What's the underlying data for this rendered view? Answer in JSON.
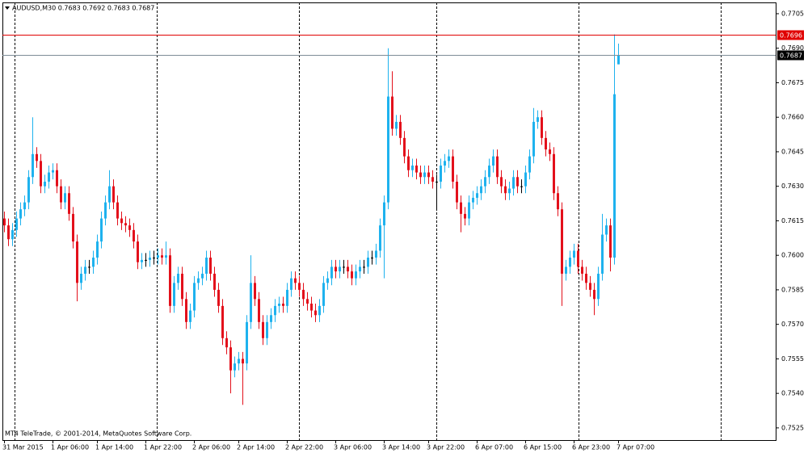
{
  "chart_data": {
    "type": "candlestick",
    "title": "AUDUSD,M30  0.7683 0.7692 0.7683 0.7687",
    "footer_text": "MT4 TeleTrade, © 2001-2014, MetaQuotes Software Corp.",
    "categories": [
      "31 Mar 2015",
      null,
      null,
      null,
      null,
      null,
      null,
      null,
      null,
      null,
      null,
      null,
      "1 Apr 06:00",
      null,
      null,
      null,
      null,
      null,
      null,
      null,
      null,
      null,
      null,
      "1 Apr 14:00",
      null,
      null,
      null,
      null,
      null,
      null,
      null,
      null,
      null,
      null,
      null,
      "1 Apr 22:00",
      null,
      null,
      null,
      null,
      null,
      null,
      null,
      null,
      null,
      null,
      null,
      "2 Apr 06:00",
      null,
      null,
      null,
      null,
      null,
      null,
      null,
      null,
      null,
      null,
      "2 Apr 14:00",
      null,
      null,
      null,
      null,
      null,
      null,
      null,
      null,
      null,
      null,
      null,
      "2 Apr 22:00",
      null,
      null,
      null,
      null,
      null,
      null,
      null,
      null,
      null,
      null,
      null,
      "3 Apr 06:00",
      null,
      null,
      null,
      null,
      null,
      null,
      null,
      null,
      null,
      null,
      null,
      "3 Apr 14:00",
      null,
      null,
      null,
      null,
      null,
      null,
      null,
      null,
      null,
      null,
      "3 Apr 22:00",
      null,
      null,
      null,
      null,
      null,
      null,
      null,
      null,
      null,
      null,
      null,
      "6 Apr 07:00",
      null,
      null,
      null,
      null,
      null,
      null,
      null,
      null,
      null,
      null,
      null,
      "6 Apr 15:00",
      null,
      null,
      null,
      null,
      null,
      null,
      null,
      null,
      null,
      null,
      null,
      "6 Apr 23:00",
      null,
      null,
      null,
      null,
      null,
      null,
      null,
      null,
      null,
      null,
      "7 Apr 07:00"
    ],
    "open": [
      0.7616,
      0.7613,
      0.7607,
      0.7611,
      0.7616,
      0.762,
      0.7623,
      0.7634,
      0.7644,
      0.7641,
      0.763,
      0.7632,
      0.7636,
      0.7637,
      0.763,
      0.7623,
      0.7627,
      0.7618,
      0.7606,
      0.7588,
      0.7592,
      0.7595,
      0.7595,
      0.7599,
      0.7606,
      0.7616,
      0.7623,
      0.763,
      0.7623,
      0.7616,
      0.7614,
      0.7613,
      0.7611,
      0.7606,
      0.7597,
      0.7598,
      0.7598,
      0.7599,
      0.7599,
      0.76,
      0.7599,
      0.76,
      0.7578,
      0.7588,
      0.7592,
      0.7581,
      0.7571,
      0.7576,
      0.7588,
      0.759,
      0.7592,
      0.7599,
      0.7592,
      0.7585,
      0.7578,
      0.7564,
      0.756,
      0.755,
      0.7553,
      0.7555,
      0.7553,
      0.7571,
      0.7588,
      0.7581,
      0.7571,
      0.7564,
      0.7571,
      0.7574,
      0.7578,
      0.7579,
      0.7578,
      0.7585,
      0.759,
      0.7588,
      0.7585,
      0.7581,
      0.7579,
      0.7576,
      0.7574,
      0.7578,
      0.7588,
      0.759,
      0.7595,
      0.7593,
      0.7595,
      0.7595,
      0.7593,
      0.759,
      0.7593,
      0.7595,
      0.7595,
      0.7599,
      0.7599,
      0.7602,
      0.7613,
      0.7623,
      0.7669,
      0.7655,
      0.7658,
      0.7651,
      0.7643,
      0.7637,
      0.7639,
      0.7636,
      0.7634,
      0.7636,
      0.7634,
      0.7632,
      0.7632,
      0.7639,
      0.7641,
      0.7643,
      0.7632,
      0.7623,
      0.7618,
      0.7616,
      0.7623,
      0.7625,
      0.7627,
      0.763,
      0.7634,
      0.7639,
      0.7643,
      0.7634,
      0.763,
      0.7627,
      0.7629,
      0.7634,
      0.763,
      0.763,
      0.7636,
      0.7643,
      0.7658,
      0.766,
      0.7651,
      0.7646,
      0.7644,
      0.7627,
      0.762,
      0.7592,
      0.7595,
      0.7599,
      0.7602,
      0.7595,
      0.7592,
      0.7588,
      0.7585,
      0.7581,
      0.7592,
      0.7609,
      0.7613,
      0.7599,
      0.7683
    ],
    "high": [
      0.7619,
      0.7616,
      0.7614,
      0.7619,
      0.7623,
      0.7626,
      0.7637,
      0.766,
      0.7647,
      0.7644,
      0.7635,
      0.7639,
      0.764,
      0.764,
      0.7633,
      0.763,
      0.763,
      0.7621,
      0.7609,
      0.7595,
      0.7598,
      0.7598,
      0.7602,
      0.7609,
      0.7619,
      0.7626,
      0.7637,
      0.7633,
      0.7626,
      0.7619,
      0.7617,
      0.7616,
      0.7614,
      0.7609,
      0.7601,
      0.7601,
      0.7602,
      0.7602,
      0.7603,
      0.7603,
      0.7606,
      0.7603,
      0.7591,
      0.7595,
      0.7595,
      0.7584,
      0.7579,
      0.7591,
      0.7593,
      0.7595,
      0.7602,
      0.7602,
      0.7595,
      0.7588,
      0.7581,
      0.7567,
      0.7563,
      0.7556,
      0.7558,
      0.7558,
      0.7574,
      0.76,
      0.7591,
      0.7584,
      0.7574,
      0.7574,
      0.7577,
      0.7581,
      0.7582,
      0.7582,
      0.7588,
      0.7593,
      0.7593,
      0.7591,
      0.7588,
      0.7584,
      0.7582,
      0.7579,
      0.7581,
      0.7591,
      0.7593,
      0.7598,
      0.7598,
      0.7598,
      0.7598,
      0.7598,
      0.7596,
      0.7596,
      0.7598,
      0.7598,
      0.7602,
      0.7602,
      0.7605,
      0.7616,
      0.7626,
      0.769,
      0.768,
      0.7661,
      0.7661,
      0.7654,
      0.7646,
      0.7642,
      0.7642,
      0.7639,
      0.7639,
      0.7639,
      0.7637,
      0.7635,
      0.7642,
      0.7644,
      0.7646,
      0.7646,
      0.7635,
      0.7626,
      0.7621,
      0.7626,
      0.7628,
      0.763,
      0.7633,
      0.7637,
      0.7642,
      0.7646,
      0.7646,
      0.7637,
      0.7633,
      0.7632,
      0.7637,
      0.7637,
      0.7633,
      0.7639,
      0.7646,
      0.7664,
      0.7663,
      0.7663,
      0.7654,
      0.7649,
      0.7647,
      0.763,
      0.7623,
      0.7598,
      0.7602,
      0.7605,
      0.7605,
      0.7598,
      0.7595,
      0.7591,
      0.7588,
      0.7595,
      0.7618,
      0.7616,
      0.7616,
      0.7696,
      0.7692
    ],
    "low": [
      0.761,
      0.7604,
      0.7604,
      0.7608,
      0.7613,
      0.7617,
      0.762,
      0.7631,
      0.7638,
      0.7627,
      0.7627,
      0.7629,
      0.7633,
      0.7627,
      0.762,
      0.762,
      0.7615,
      0.7603,
      0.758,
      0.7585,
      0.7589,
      0.7592,
      0.7592,
      0.7596,
      0.7603,
      0.7613,
      0.762,
      0.762,
      0.7613,
      0.7611,
      0.761,
      0.7608,
      0.7603,
      0.7594,
      0.7594,
      0.7595,
      0.7595,
      0.7596,
      0.7596,
      0.7596,
      0.7596,
      0.7575,
      0.7575,
      0.7585,
      0.7578,
      0.7568,
      0.7568,
      0.7573,
      0.7585,
      0.7587,
      0.7589,
      0.7589,
      0.7582,
      0.7575,
      0.7561,
      0.7557,
      0.754,
      0.7547,
      0.755,
      0.7535,
      0.755,
      0.7568,
      0.7578,
      0.7568,
      0.7561,
      0.7561,
      0.7568,
      0.7571,
      0.7575,
      0.7575,
      0.7575,
      0.7582,
      0.7585,
      0.7582,
      0.7578,
      0.7576,
      0.7573,
      0.7571,
      0.7571,
      0.7575,
      0.7585,
      0.7587,
      0.759,
      0.759,
      0.7592,
      0.759,
      0.7587,
      0.7587,
      0.759,
      0.7592,
      0.7592,
      0.7596,
      0.7596,
      0.7599,
      0.759,
      0.762,
      0.7652,
      0.7652,
      0.7648,
      0.764,
      0.7634,
      0.7634,
      0.7633,
      0.7631,
      0.7631,
      0.7631,
      0.7629,
      0.762,
      0.7629,
      0.7636,
      0.7638,
      0.7629,
      0.762,
      0.761,
      0.7613,
      0.7613,
      0.762,
      0.7622,
      0.7624,
      0.7627,
      0.7631,
      0.7636,
      0.7631,
      0.7627,
      0.7624,
      0.7624,
      0.7626,
      0.7627,
      0.7627,
      0.7627,
      0.7633,
      0.764,
      0.7655,
      0.7648,
      0.7643,
      0.7641,
      0.7624,
      0.7617,
      0.7578,
      0.7589,
      0.7592,
      0.7596,
      0.7592,
      0.7589,
      0.7585,
      0.7582,
      0.7574,
      0.7578,
      0.7589,
      0.7606,
      0.7593,
      0.7596,
      0.7683
    ],
    "close": [
      0.7613,
      0.7607,
      0.7611,
      0.7616,
      0.762,
      0.7623,
      0.7634,
      0.7644,
      0.7641,
      0.763,
      0.7632,
      0.7636,
      0.7637,
      0.763,
      0.7623,
      0.7627,
      0.7618,
      0.7606,
      0.7588,
      0.7592,
      0.7595,
      0.7595,
      0.7599,
      0.7606,
      0.7616,
      0.7623,
      0.763,
      0.7623,
      0.7616,
      0.7614,
      0.7613,
      0.7611,
      0.7606,
      0.7597,
      0.7598,
      0.7598,
      0.7599,
      0.7599,
      0.76,
      0.7599,
      0.76,
      0.7578,
      0.7588,
      0.7592,
      0.7581,
      0.7571,
      0.7576,
      0.7588,
      0.759,
      0.7592,
      0.7599,
      0.7592,
      0.7585,
      0.7578,
      0.7564,
      0.756,
      0.755,
      0.7553,
      0.7555,
      0.7553,
      0.7571,
      0.7588,
      0.7581,
      0.7571,
      0.7564,
      0.7571,
      0.7574,
      0.7578,
      0.7579,
      0.7578,
      0.7585,
      0.759,
      0.7588,
      0.7585,
      0.7581,
      0.7579,
      0.7576,
      0.7574,
      0.7578,
      0.7588,
      0.759,
      0.7595,
      0.7593,
      0.7595,
      0.7595,
      0.7593,
      0.759,
      0.7593,
      0.7595,
      0.7595,
      0.7599,
      0.7599,
      0.7602,
      0.7613,
      0.7623,
      0.7669,
      0.7655,
      0.7658,
      0.7651,
      0.7643,
      0.7637,
      0.7639,
      0.7636,
      0.7634,
      0.7636,
      0.7634,
      0.7632,
      0.7632,
      0.7639,
      0.7641,
      0.7643,
      0.7632,
      0.7623,
      0.7618,
      0.7616,
      0.7623,
      0.7625,
      0.7627,
      0.763,
      0.7634,
      0.7639,
      0.7643,
      0.7634,
      0.763,
      0.7627,
      0.7629,
      0.7634,
      0.763,
      0.763,
      0.7636,
      0.7643,
      0.7658,
      0.766,
      0.7651,
      0.7646,
      0.7644,
      0.7627,
      0.762,
      0.7592,
      0.7595,
      0.7599,
      0.7602,
      0.7595,
      0.7592,
      0.7588,
      0.7585,
      0.7581,
      0.7592,
      0.7609,
      0.7613,
      0.7599,
      0.767,
      0.7687
    ],
    "up_color": "#1eb2ee",
    "down_color": "#e3101b",
    "doji_color": "#000000",
    "ylim": [
      0.75197,
      0.77099
    ],
    "yticks": [
      0.7705,
      {
        "value": 0.769,
        "label": "0.7690"
      },
      0.7675,
      {
        "value": 0.766,
        "label": "0.7660"
      },
      0.7645,
      {
        "value": 0.763,
        "label": "0.7630"
      },
      0.7615,
      {
        "value": 0.76,
        "label": "0.7600"
      },
      0.7585,
      {
        "value": 0.757,
        "label": "0.7570"
      },
      0.7555,
      {
        "value": 0.754,
        "label": "0.7540"
      },
      0.7525
    ],
    "price_lines": [
      {
        "value": 0.7696,
        "color": "#e00000"
      },
      {
        "value": 0.7687,
        "color": "#7d8c97"
      }
    ]
  }
}
